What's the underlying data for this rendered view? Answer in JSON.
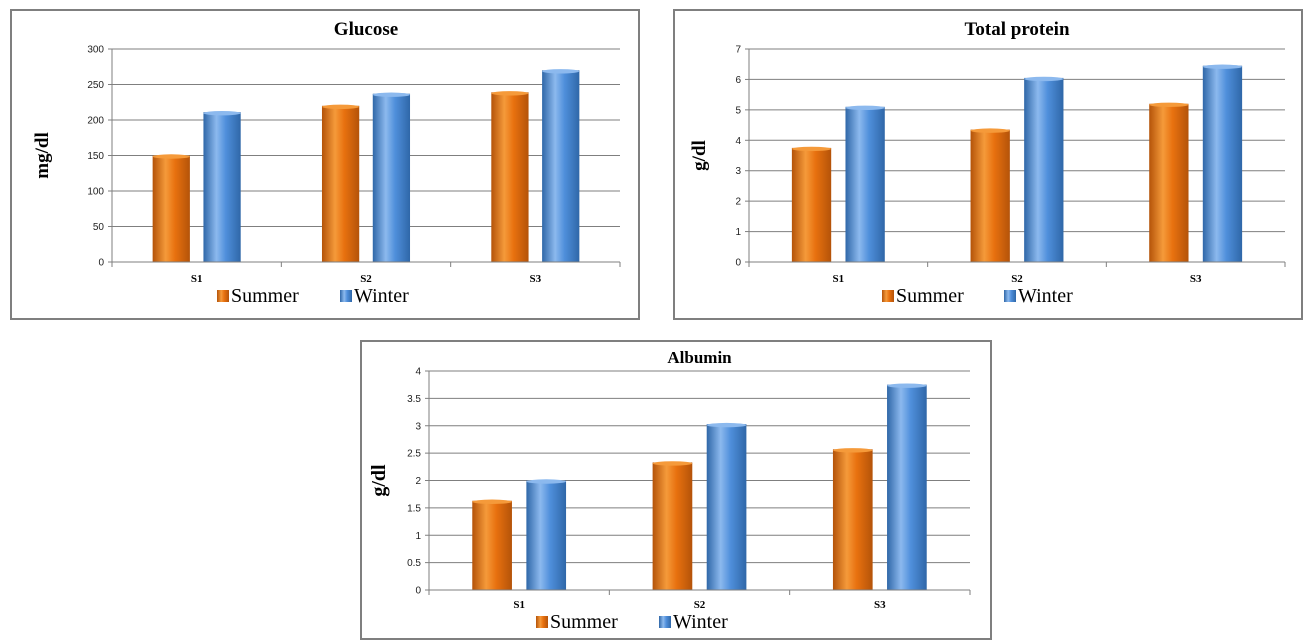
{
  "colors": {
    "summer": "#e8710f",
    "summer_light": "#f59a3a",
    "summer_dark": "#b45309",
    "winter": "#4f8fdb",
    "winter_light": "#8cb9ee",
    "winter_dark": "#2f67a8",
    "grid": "#7f7f7f",
    "border": "#7f7f7f"
  },
  "chart_data": [
    {
      "id": "glucose",
      "type": "bar",
      "title": "Glucose",
      "ylabel": "mg/dl",
      "xlabel": "",
      "categories": [
        "S1",
        "S2",
        "S3"
      ],
      "ylim": [
        0,
        300
      ],
      "yticks": [
        "0",
        "50",
        "100",
        "150",
        "200",
        "250",
        "300"
      ],
      "series": [
        {
          "name": "Summer",
          "values": [
            150,
            220,
            239
          ]
        },
        {
          "name": "Winter",
          "values": [
            211,
            237,
            270
          ]
        }
      ],
      "grid": true,
      "legend": "bottom"
    },
    {
      "id": "protein",
      "type": "bar",
      "title": "Total protein",
      "ylabel": "g/dl",
      "xlabel": "",
      "categories": [
        "S1",
        "S2",
        "S3"
      ],
      "ylim": [
        0,
        7
      ],
      "yticks": [
        "0",
        "1",
        "2",
        "3",
        "4",
        "5",
        "6",
        "7"
      ],
      "series": [
        {
          "name": "Summer",
          "values": [
            3.75,
            4.35,
            5.2
          ]
        },
        {
          "name": "Winter",
          "values": [
            5.1,
            6.05,
            6.45
          ]
        }
      ],
      "grid": true,
      "legend": "bottom"
    },
    {
      "id": "albumin",
      "type": "bar",
      "title": "Albumin",
      "ylabel": "g/dl",
      "xlabel": "",
      "categories": [
        "S1",
        "S2",
        "S3"
      ],
      "ylim": [
        0,
        4
      ],
      "yticks": [
        "0",
        "0.5",
        "1",
        "1.5",
        "2",
        "2.5",
        "3",
        "3.5",
        "4"
      ],
      "series": [
        {
          "name": "Summer",
          "values": [
            1.63,
            2.33,
            2.57
          ]
        },
        {
          "name": "Winter",
          "values": [
            2.0,
            3.03,
            3.75
          ]
        }
      ],
      "grid": true,
      "legend": "bottom"
    }
  ]
}
